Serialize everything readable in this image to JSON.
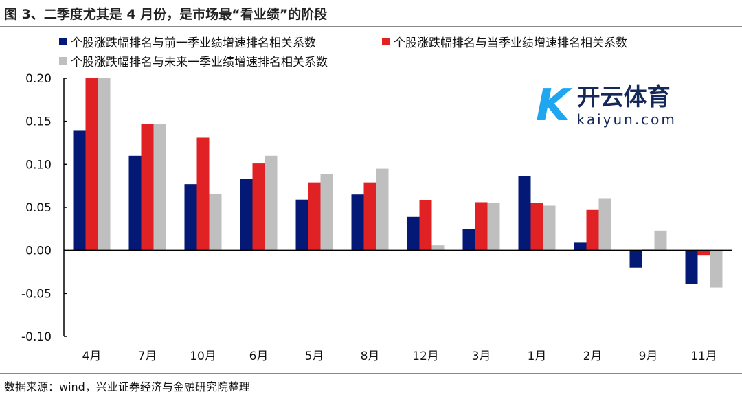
{
  "title": "图 3、二季度尤其是 4 月份，是市场最“看业绩”的阶段",
  "source": "数据来源：wind，兴业证券经济与金融研究院整理",
  "watermark": {
    "mark": "K",
    "cn": "开云体育",
    "en": "kaiyun.com"
  },
  "chart_data": {
    "type": "bar",
    "title": "",
    "xlabel": "",
    "ylabel": "",
    "ylim": [
      -0.1,
      0.2
    ],
    "yticks": [
      "0.20",
      "0.15",
      "0.10",
      "0.05",
      "0.00",
      "-0.05",
      "-0.10"
    ],
    "ytick_values": [
      0.2,
      0.15,
      0.1,
      0.05,
      0.0,
      -0.05,
      -0.1
    ],
    "grid": false,
    "legend_placement": "top",
    "categories": [
      "4月",
      "7月",
      "10月",
      "6月",
      "5月",
      "8月",
      "12月",
      "3月",
      "1月",
      "2月",
      "9月",
      "11月"
    ],
    "series": [
      {
        "name": "个股涨跌幅排名与前一季业绩增速排名相关系数",
        "color": "#041875",
        "values": [
          0.139,
          0.11,
          0.077,
          0.083,
          0.059,
          0.065,
          0.039,
          0.025,
          0.086,
          0.009,
          -0.02,
          -0.039
        ]
      },
      {
        "name": "个股涨跌幅排名与当季业绩增速排名相关系数",
        "color": "#e02224",
        "values": [
          0.2,
          0.147,
          0.131,
          0.101,
          0.079,
          0.079,
          0.058,
          0.056,
          0.055,
          0.047,
          0.001,
          -0.006
        ]
      },
      {
        "name": "个股涨跌幅排名与未来一季业绩增速排名相关系数",
        "color": "#bfbfbf",
        "values": [
          0.2,
          0.147,
          0.066,
          0.11,
          0.089,
          0.095,
          0.006,
          0.055,
          0.052,
          0.06,
          0.023,
          -0.043
        ]
      }
    ]
  }
}
